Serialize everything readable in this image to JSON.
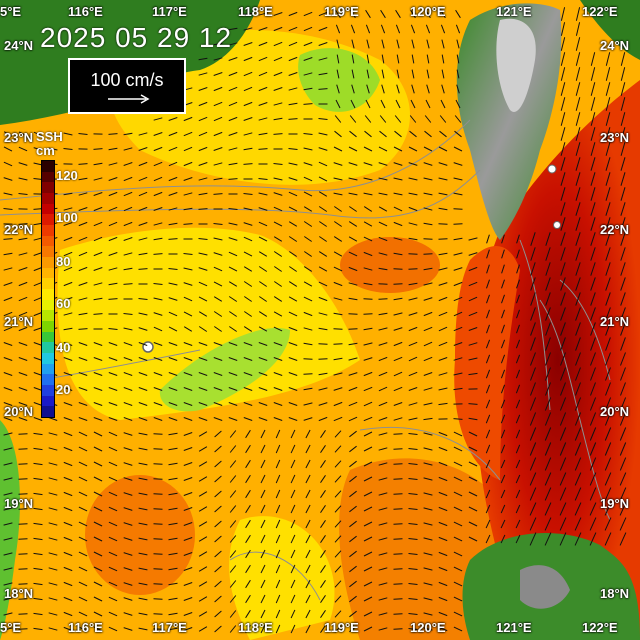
{
  "timestamp": "2025 05 29 12",
  "scale": {
    "label": "100  cm/s"
  },
  "colorbar": {
    "title": "SSH",
    "unit": "cm",
    "ticks": [
      "120",
      "100",
      "80",
      "60",
      "40",
      "20"
    ],
    "colors": [
      "#2a0000",
      "#550000",
      "#800000",
      "#a30000",
      "#c40000",
      "#dd1a00",
      "#ee3a00",
      "#f45a00",
      "#f77800",
      "#fb9a00",
      "#ffb400",
      "#ffd000",
      "#ffe800",
      "#e6f000",
      "#b8e600",
      "#7ed600",
      "#38c838",
      "#20c8a0",
      "#20c8e0",
      "#20a0f0",
      "#2070f0",
      "#2040e0",
      "#1a1ac8",
      "#101090"
    ]
  },
  "lat_labels_left": [
    "24°N",
    "23°N",
    "22°N",
    "21°N",
    "20°N",
    "19°N",
    "18°N"
  ],
  "lat_labels_right": [
    "24°N",
    "23°N",
    "22°N",
    "21°N",
    "20°N",
    "19°N",
    "18°N"
  ],
  "lon_labels_top": [
    "5°E",
    "116°E",
    "117°E",
    "118°E",
    "119°E",
    "120°E",
    "121°E",
    "122°E"
  ],
  "lon_labels_bottom": [
    "5°E",
    "116°E",
    "117°E",
    "118°E",
    "119°E",
    "120°E",
    "121°E",
    "122°E"
  ],
  "colors": {
    "land": "#2f7d1f",
    "ssh_yellow": "#ffe600",
    "ssh_orange": "#ffa500",
    "ssh_red": "#cc1000"
  }
}
